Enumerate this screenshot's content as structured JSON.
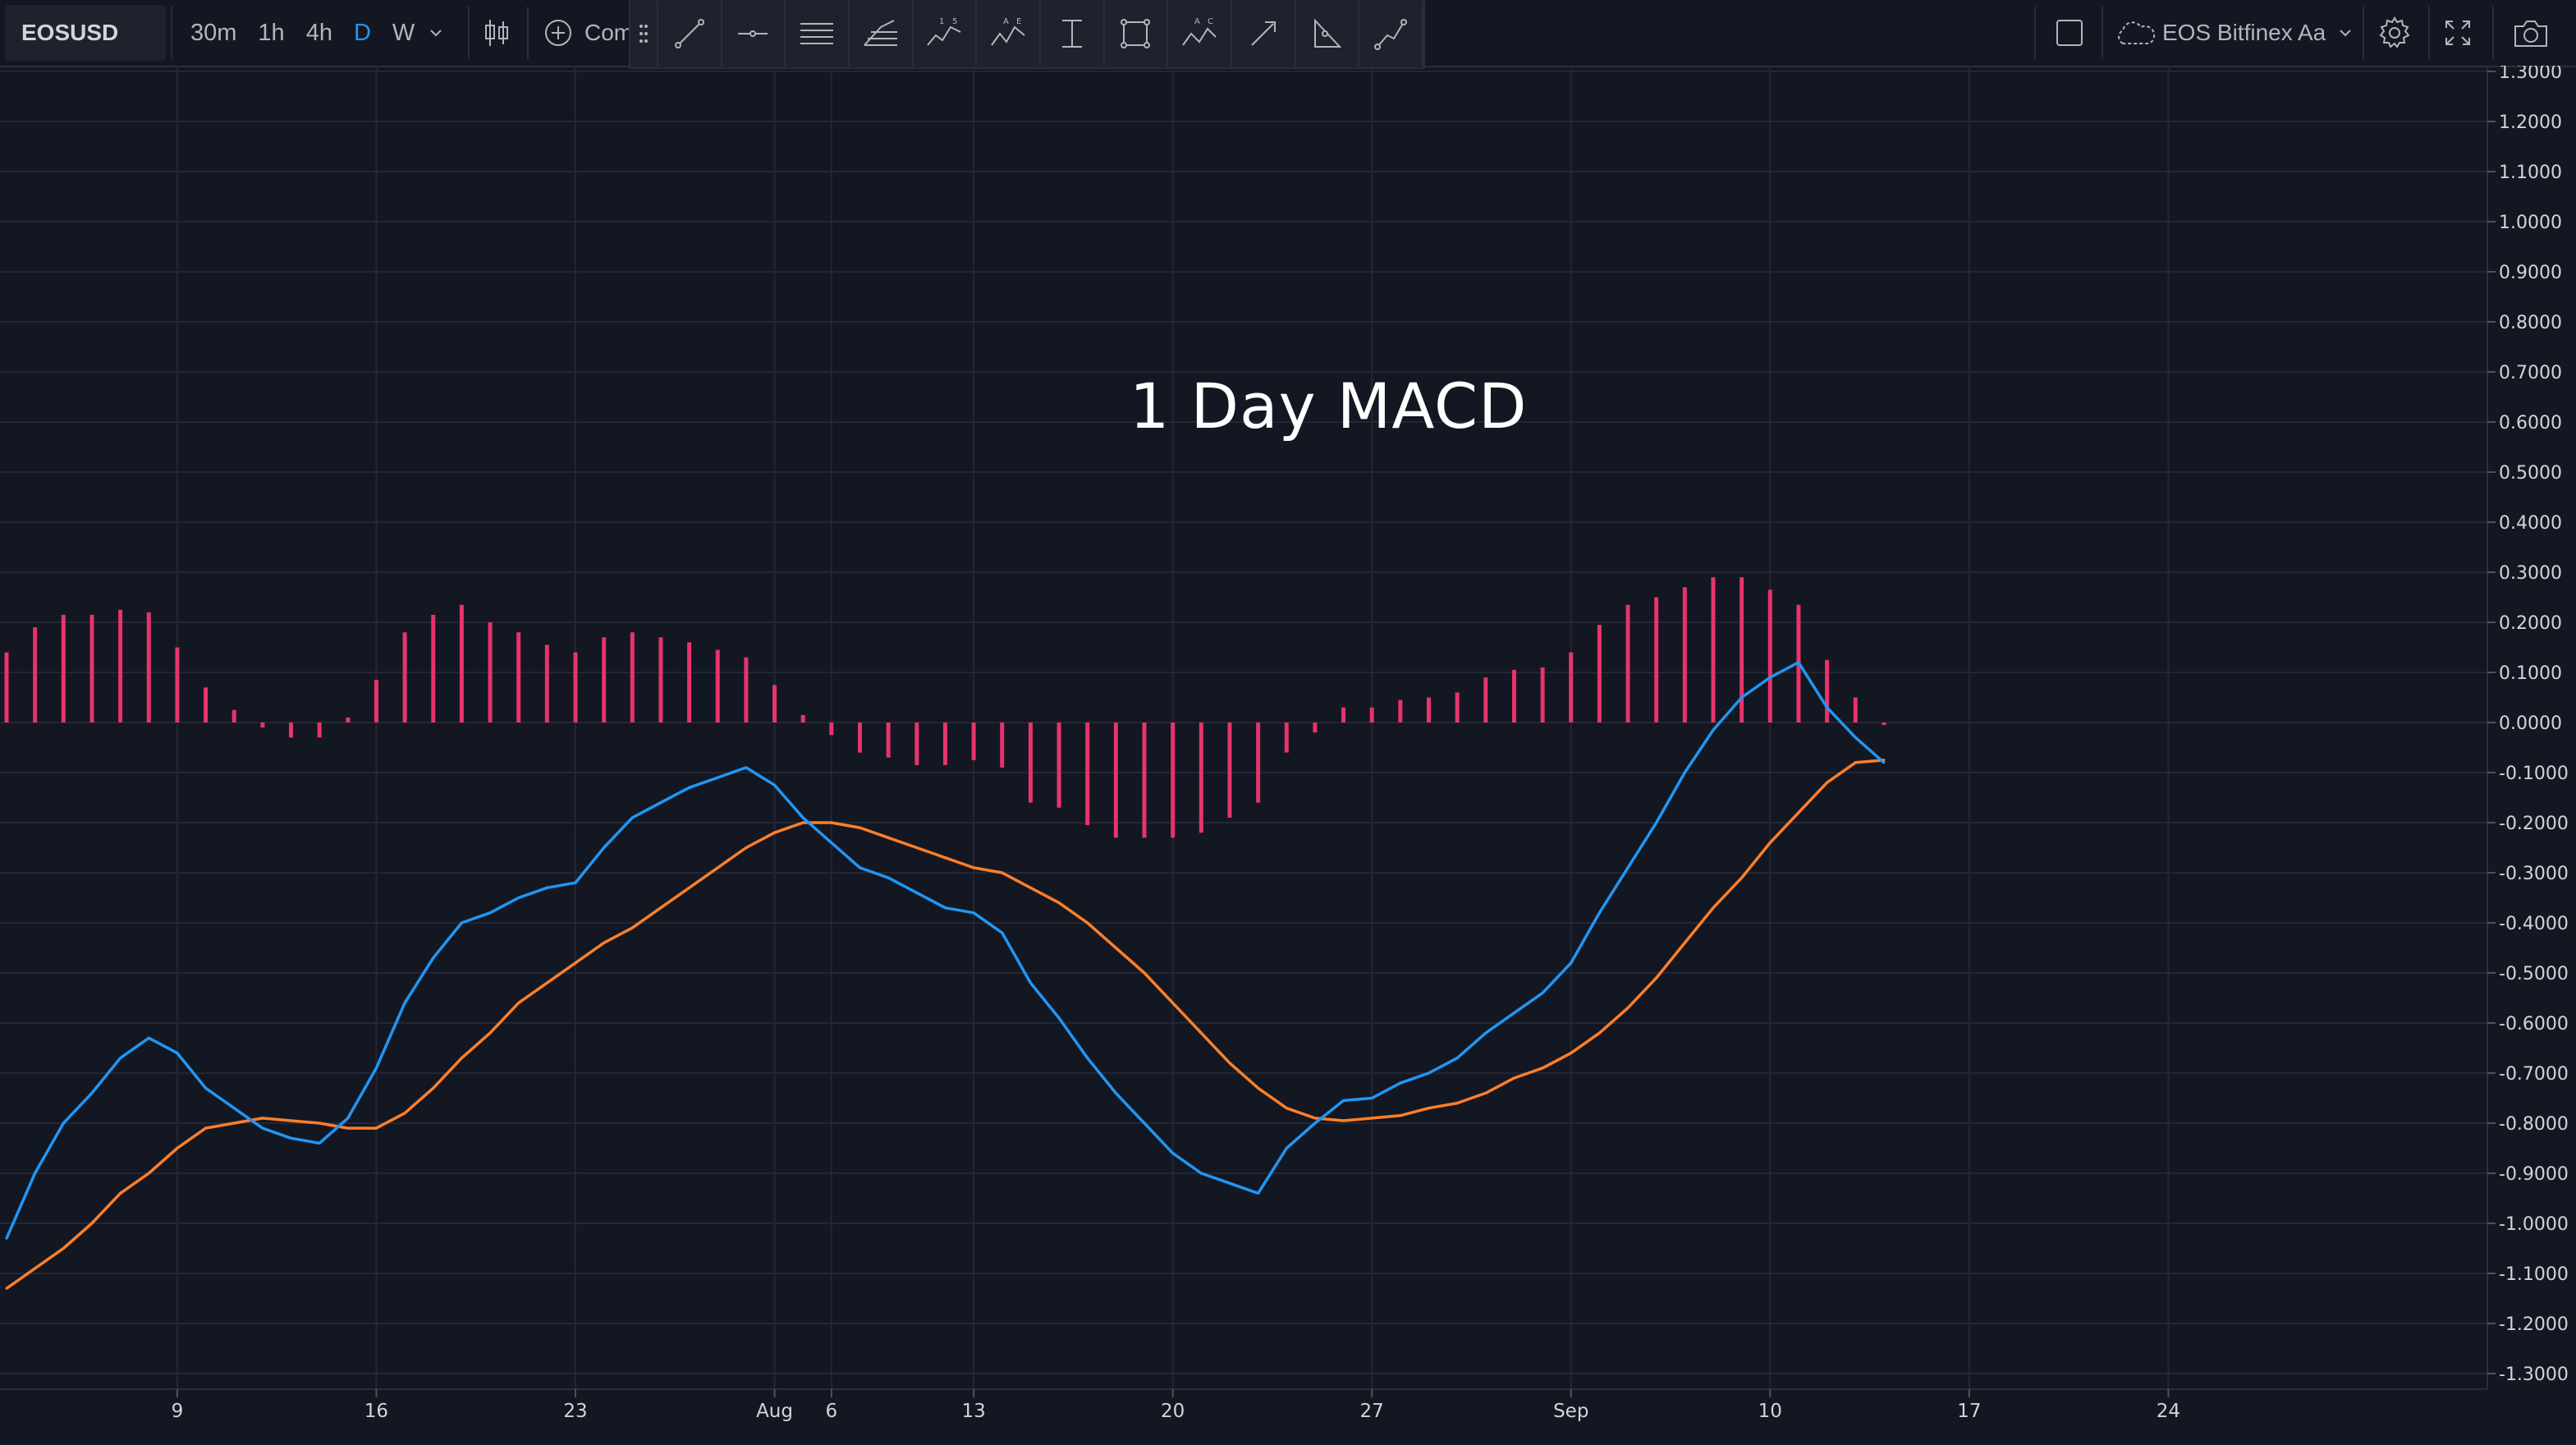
{
  "toolbar": {
    "symbol": "EOSUSD",
    "intervals": [
      "30m",
      "1h",
      "4h",
      "D",
      "W"
    ],
    "active_interval": "D",
    "compare_label": "Com",
    "source_label": "EOS Bitfinex Aa",
    "icons": {
      "chart_type": "candlestick-icon",
      "compare": "plus-circle-icon",
      "drawing_tools": [
        "drag-handle-icon",
        "trend-line-icon",
        "horizontal-ray-icon",
        "parallel-lines-icon",
        "fib-retracement-icon",
        "elliott-wave-icon",
        "abcd-pattern-icon",
        "vertical-range-icon",
        "rectangle-icon",
        "abc-pattern-icon",
        "arrow-icon",
        "triangle-icon",
        "path-icon"
      ],
      "right": [
        "square-icon",
        "cloud-icon",
        "chevron-down-icon",
        "gear-icon",
        "fullscreen-icon",
        "camera-icon"
      ]
    }
  },
  "chart_data": {
    "type": "line",
    "title": "1 Day MACD",
    "x_tick_labels": [
      "9",
      "16",
      "23",
      "Aug",
      "6",
      "13",
      "20",
      "27",
      "Sep",
      "10",
      "17",
      "24"
    ],
    "y_tick_labels": [
      "1.3000",
      "1.2000",
      "1.1000",
      "1.0000",
      "0.9000",
      "0.8000",
      "0.7000",
      "0.6000",
      "0.5000",
      "0.4000",
      "0.3000",
      "0.2000",
      "0.1000",
      "0.0000",
      "-0.1000",
      "-0.2000",
      "-0.3000",
      "-0.4000",
      "-0.5000",
      "-0.6000",
      "-0.7000",
      "-0.8000",
      "-0.9000",
      "-1.0000",
      "-1.1000",
      "-1.2000",
      "-1.3000"
    ],
    "ylim": [
      -1.3,
      1.3
    ],
    "grid": true,
    "colors": {
      "macd": "#2196f3",
      "signal": "#ff7f2a",
      "histogram": "#e8336b",
      "grid": "#232735",
      "background": "#131722"
    },
    "x_start_day": "Jul 3",
    "x_day_per_bar": 1,
    "histogram": [
      0.14,
      0.19,
      0.215,
      0.215,
      0.225,
      0.22,
      0.15,
      0.07,
      0.025,
      -0.01,
      -0.03,
      -0.03,
      0.01,
      0.085,
      0.18,
      0.215,
      0.235,
      0.2,
      0.18,
      0.155,
      0.14,
      0.17,
      0.18,
      0.17,
      0.16,
      0.145,
      0.13,
      0.075,
      0.015,
      -0.025,
      -0.06,
      -0.07,
      -0.085,
      -0.085,
      -0.075,
      -0.09,
      -0.16,
      -0.17,
      -0.205,
      -0.23,
      -0.23,
      -0.23,
      -0.22,
      -0.19,
      -0.16,
      -0.06,
      -0.02,
      0.03,
      0.03,
      0.045,
      0.05,
      0.06,
      0.09,
      0.105,
      0.11,
      0.14,
      0.195,
      0.235,
      0.25,
      0.27,
      0.29,
      0.29,
      0.265,
      0.235,
      0.125,
      0.05,
      -0.005
    ],
    "series": [
      {
        "values": [
          -1.03,
          -0.9,
          -0.8,
          -0.74,
          -0.67,
          -0.63,
          -0.66,
          -0.73,
          -0.77,
          -0.81,
          -0.83,
          -0.84,
          -0.79,
          -0.69,
          -0.56,
          -0.47,
          -0.4,
          -0.38,
          -0.35,
          -0.33,
          -0.32,
          -0.25,
          -0.19,
          -0.16,
          -0.13,
          -0.11,
          -0.09,
          -0.125,
          -0.19,
          -0.24,
          -0.29,
          -0.31,
          -0.34,
          -0.37,
          -0.38,
          -0.42,
          -0.52,
          -0.59,
          -0.67,
          -0.74,
          -0.8,
          -0.86,
          -0.9,
          -0.92,
          -0.94,
          -0.85,
          -0.8,
          -0.755,
          -0.75,
          -0.72,
          -0.7,
          -0.67,
          -0.62,
          -0.58,
          -0.54,
          -0.48,
          -0.38,
          -0.29,
          -0.2,
          -0.1,
          -0.015,
          0.05,
          0.09,
          0.12,
          0.03,
          -0.03,
          -0.08
        ]
      },
      {
        "values": [
          -1.13,
          -1.09,
          -1.05,
          -1.0,
          -0.94,
          -0.9,
          -0.85,
          -0.81,
          -0.8,
          -0.79,
          -0.795,
          -0.8,
          -0.81,
          -0.81,
          -0.78,
          -0.73,
          -0.67,
          -0.62,
          -0.56,
          -0.52,
          -0.48,
          -0.44,
          -0.41,
          -0.37,
          -0.33,
          -0.29,
          -0.25,
          -0.22,
          -0.2,
          -0.2,
          -0.21,
          -0.23,
          -0.25,
          -0.27,
          -0.29,
          -0.3,
          -0.33,
          -0.36,
          -0.4,
          -0.45,
          -0.5,
          -0.56,
          -0.62,
          -0.68,
          -0.73,
          -0.77,
          -0.79,
          -0.795,
          -0.79,
          -0.785,
          -0.77,
          -0.76,
          -0.74,
          -0.71,
          -0.69,
          -0.66,
          -0.62,
          -0.57,
          -0.51,
          -0.44,
          -0.37,
          -0.31,
          -0.24,
          -0.18,
          -0.12,
          -0.08,
          -0.075
        ]
      }
    ]
  }
}
